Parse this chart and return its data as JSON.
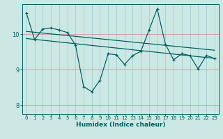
{
  "xlabel": "Humidex (Indice chaleur)",
  "bg_color": "#cce8e4",
  "line_color": "#006060",
  "grid_color_v": "#99cccc",
  "grid_color_h": "#cc9999",
  "xlim": [
    -0.5,
    23.5
  ],
  "ylim": [
    7.75,
    10.85
  ],
  "yticks": [
    8,
    9,
    10
  ],
  "xticks": [
    0,
    1,
    2,
    3,
    4,
    5,
    6,
    7,
    8,
    9,
    10,
    11,
    12,
    13,
    14,
    15,
    16,
    17,
    18,
    19,
    20,
    21,
    22,
    23
  ],
  "series1_x": [
    0,
    1,
    2,
    3,
    4,
    5,
    6,
    7,
    8,
    9,
    10,
    11,
    12,
    13,
    14,
    15,
    16,
    17,
    18,
    19,
    20,
    21,
    22,
    23
  ],
  "series1_y": [
    10.6,
    9.85,
    10.15,
    10.18,
    10.12,
    10.05,
    9.7,
    8.52,
    8.38,
    8.7,
    9.45,
    9.42,
    9.15,
    9.4,
    9.52,
    10.12,
    10.72,
    9.72,
    9.28,
    9.45,
    9.4,
    9.02,
    9.4,
    9.32
  ],
  "series2_x": [
    0,
    23
  ],
  "series2_y": [
    9.88,
    9.32
  ],
  "series3_x": [
    0,
    23
  ],
  "series3_y": [
    10.08,
    9.55
  ]
}
